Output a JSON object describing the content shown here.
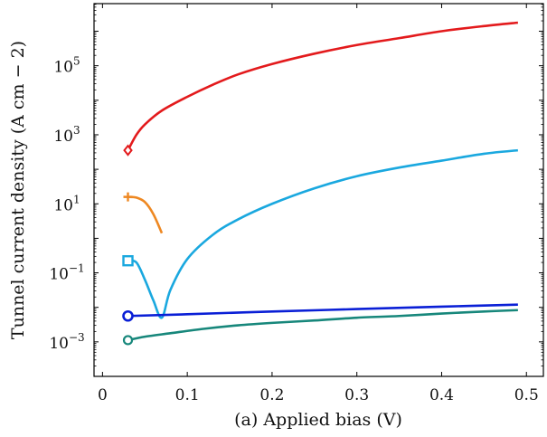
{
  "chart_data": {
    "type": "line",
    "title": "",
    "xlabel": "(a) Applied bias (V)",
    "ylabel": "Tunnel current density (A cm − 2)",
    "xlim": [
      -0.01,
      0.52
    ],
    "ylim_log10": [
      -4.0,
      6.8
    ],
    "y_scale": "log",
    "grid": false,
    "x_ticks": [
      {
        "value": 0,
        "label": "0"
      },
      {
        "value": 0.1,
        "label": "0.1"
      },
      {
        "value": 0.2,
        "label": "0.2"
      },
      {
        "value": 0.3,
        "label": "0.3"
      },
      {
        "value": 0.4,
        "label": "0.4"
      },
      {
        "value": 0.5,
        "label": "0.5"
      }
    ],
    "y_ticks": [
      {
        "exponent": 5,
        "label": "10",
        "sup": "5"
      },
      {
        "exponent": 3,
        "label": "10",
        "sup": "3"
      },
      {
        "exponent": 1,
        "label": "10",
        "sup": "1"
      },
      {
        "exponent": -1,
        "label": "10",
        "sup": "−1"
      },
      {
        "exponent": -3,
        "label": "10",
        "sup": "−3"
      }
    ],
    "series": [
      {
        "color": "#e31a1c",
        "marker": "diamond",
        "x": [
          0.03,
          0.04,
          0.05,
          0.07,
          0.1,
          0.13,
          0.16,
          0.2,
          0.25,
          0.3,
          0.35,
          0.4,
          0.45,
          0.49
        ],
        "y_log10": [
          2.55,
          3.0,
          3.3,
          3.7,
          4.1,
          4.45,
          4.75,
          5.05,
          5.35,
          5.6,
          5.8,
          6.0,
          6.15,
          6.25
        ]
      },
      {
        "color": "#ee8822",
        "marker": "plus",
        "x": [
          0.03,
          0.04,
          0.05,
          0.06,
          0.07
        ],
        "y_log10": [
          1.2,
          1.18,
          1.05,
          0.7,
          0.15
        ]
      },
      {
        "color": "#1aa8df",
        "marker": "square",
        "x": [
          0.03,
          0.04,
          0.05,
          0.06,
          0.07,
          0.08,
          0.1,
          0.13,
          0.16,
          0.2,
          0.25,
          0.3,
          0.35,
          0.4,
          0.45,
          0.49
        ],
        "y_log10": [
          -0.65,
          -0.7,
          -1.2,
          -1.8,
          -2.3,
          -1.5,
          -0.6,
          0.1,
          0.55,
          1.0,
          1.45,
          1.8,
          2.05,
          2.25,
          2.45,
          2.55
        ]
      },
      {
        "color": "#0a1fd6",
        "marker": "circle",
        "x": [
          0.03,
          0.1,
          0.2,
          0.3,
          0.4,
          0.49
        ],
        "y_log10": [
          -2.25,
          -2.2,
          -2.12,
          -2.05,
          -1.98,
          -1.92
        ]
      },
      {
        "color": "#17877b",
        "marker": "circle-open",
        "x": [
          0.03,
          0.05,
          0.08,
          0.12,
          0.16,
          0.2,
          0.25,
          0.3,
          0.35,
          0.4,
          0.45,
          0.49
        ],
        "y_log10": [
          -2.95,
          -2.85,
          -2.75,
          -2.62,
          -2.52,
          -2.45,
          -2.38,
          -2.3,
          -2.25,
          -2.18,
          -2.12,
          -2.08
        ]
      }
    ]
  }
}
